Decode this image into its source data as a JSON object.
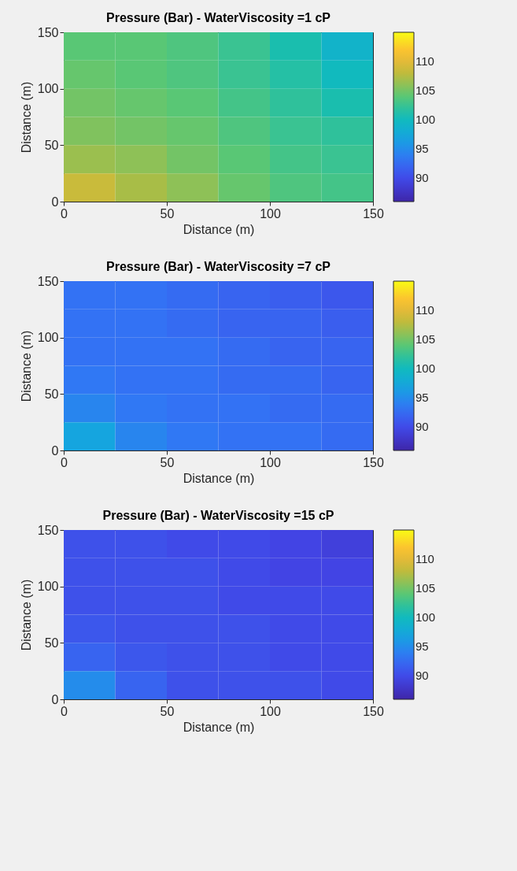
{
  "chart_data": [
    {
      "type": "heatmap",
      "title": "Pressure (Bar) - WaterViscosity =1 cP",
      "xlabel": "Distance (m)",
      "ylabel": "Distance (m)",
      "xlim": [
        0,
        150
      ],
      "xticks": [
        0,
        50,
        100,
        150
      ],
      "ylim": [
        0,
        150
      ],
      "yticks": [
        0,
        50,
        100,
        150
      ],
      "clim": [
        86,
        115
      ],
      "cticks": [
        90,
        95,
        100,
        105,
        110
      ],
      "cells": [
        [
          104,
          104,
          103.5,
          102.5,
          101,
          99
        ],
        [
          104.5,
          104,
          103.5,
          102.5,
          101.5,
          100
        ],
        [
          105,
          104.5,
          104,
          103,
          102,
          101
        ],
        [
          105.5,
          105,
          104.5,
          103.5,
          102.5,
          102
        ],
        [
          106.5,
          106,
          105,
          104,
          103,
          102.5
        ],
        [
          108.5,
          107,
          106,
          104.5,
          103.5,
          103
        ]
      ]
    },
    {
      "type": "heatmap",
      "title": "Pressure (Bar) - WaterViscosity =7 cP",
      "xlabel": "Distance (m)",
      "ylabel": "Distance (m)",
      "xlim": [
        0,
        150
      ],
      "xticks": [
        0,
        50,
        100,
        150
      ],
      "ylim": [
        0,
        150
      ],
      "yticks": [
        0,
        50,
        100,
        150
      ],
      "clim": [
        86,
        115
      ],
      "cticks": [
        90,
        95,
        100,
        105,
        110
      ],
      "cells": [
        [
          93,
          93,
          92.5,
          92,
          91.5,
          91
        ],
        [
          93,
          93,
          92.5,
          92,
          92,
          91.5
        ],
        [
          93,
          93,
          93,
          92.5,
          92,
          92
        ],
        [
          93.5,
          93,
          93,
          92.5,
          92.5,
          92
        ],
        [
          94.5,
          93.5,
          93,
          93,
          92.5,
          92.5
        ],
        [
          97,
          94.5,
          93.5,
          93,
          93,
          92.5
        ]
      ]
    },
    {
      "type": "heatmap",
      "title": "Pressure (Bar) - WaterViscosity =15 cP",
      "xlabel": "Distance (m)",
      "ylabel": "Distance (m)",
      "xlim": [
        0,
        150
      ],
      "xticks": [
        0,
        50,
        100,
        150
      ],
      "ylim": [
        0,
        150
      ],
      "yticks": [
        0,
        50,
        100,
        150
      ],
      "clim": [
        86,
        115
      ],
      "cticks": [
        90,
        95,
        100,
        105,
        110
      ],
      "cells": [
        [
          90.5,
          90.5,
          90,
          90,
          89.5,
          89
        ],
        [
          90.5,
          90.5,
          90.5,
          90,
          89.5,
          89.5
        ],
        [
          90.5,
          90.5,
          90.5,
          90,
          90,
          90
        ],
        [
          91,
          90.5,
          90.5,
          90.5,
          90,
          90
        ],
        [
          92,
          91,
          90.5,
          90.5,
          90,
          90
        ],
        [
          95,
          92,
          90.5,
          90.5,
          90.5,
          90
        ]
      ]
    }
  ]
}
